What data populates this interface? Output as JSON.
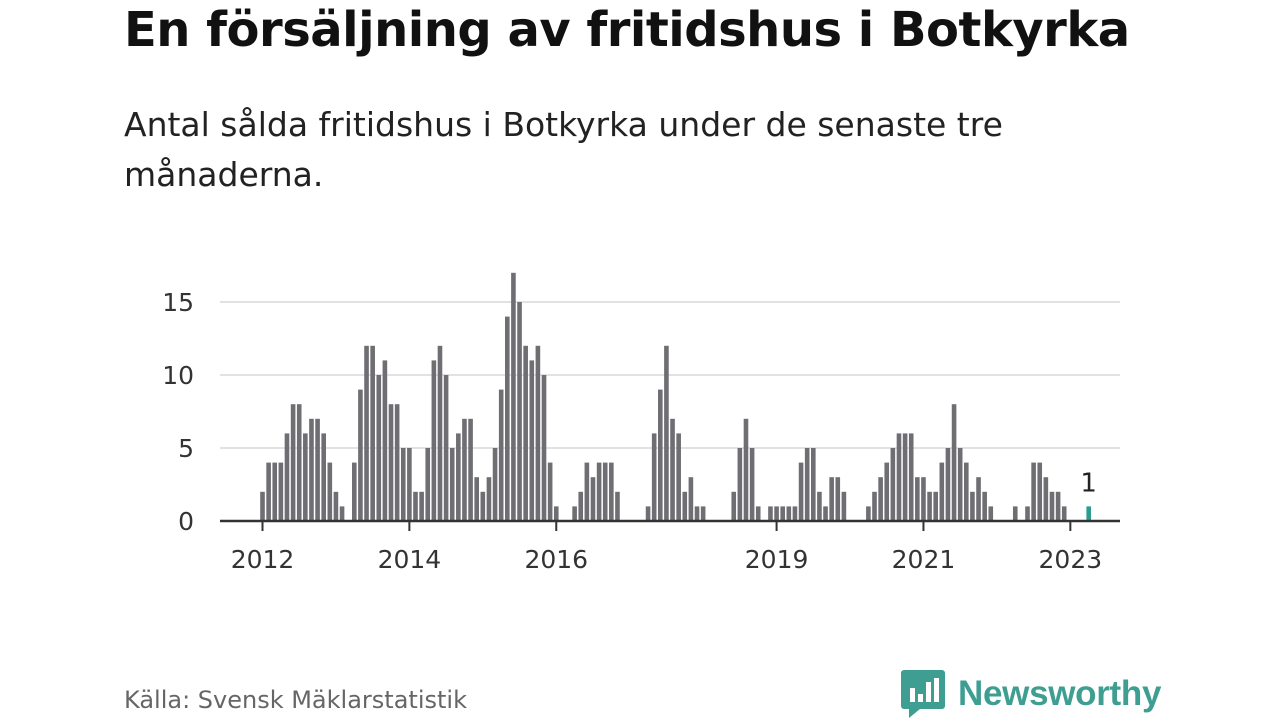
{
  "header": {
    "title": "En försäljning av fritidshus i Botkyrka",
    "subtitle": "Antal sålda fritidshus i Botkyrka under de senaste tre månaderna."
  },
  "footer": {
    "source": "Källa: Svensk Mäklarstatistik",
    "brand": "Newsworthy",
    "brand_icon": "bar-chart-speech-bubble-icon"
  },
  "colors": {
    "bar": "#6e6e73",
    "highlight": "#2a9d8f",
    "grid": "#d9d9d9",
    "axis": "#333333",
    "brand": "#3f9e92"
  },
  "chart_data": {
    "type": "bar",
    "title": "En försäljning av fritidshus i Botkyrka",
    "subtitle": "Antal sålda fritidshus i Botkyrka under de senaste tre månaderna.",
    "start_month": "2012-01",
    "values": [
      2,
      4,
      4,
      4,
      6,
      8,
      8,
      6,
      7,
      7,
      6,
      4,
      2,
      1,
      0,
      4,
      9,
      12,
      12,
      10,
      11,
      8,
      8,
      5,
      5,
      2,
      2,
      5,
      11,
      12,
      10,
      5,
      6,
      7,
      7,
      3,
      2,
      3,
      5,
      9,
      14,
      17,
      15,
      12,
      11,
      12,
      10,
      4,
      1,
      0,
      0,
      1,
      2,
      4,
      3,
      4,
      4,
      4,
      2,
      0,
      0,
      0,
      0,
      1,
      6,
      9,
      12,
      7,
      6,
      2,
      3,
      1,
      1,
      0,
      0,
      0,
      0,
      2,
      5,
      7,
      5,
      1,
      0,
      1,
      1,
      1,
      1,
      1,
      4,
      5,
      5,
      2,
      1,
      3,
      3,
      2,
      0,
      0,
      0,
      1,
      2,
      3,
      4,
      5,
      6,
      6,
      6,
      3,
      3,
      2,
      2,
      4,
      5,
      8,
      5,
      4,
      2,
      3,
      2,
      1,
      0,
      0,
      0,
      1,
      0,
      1,
      4,
      4,
      3,
      2,
      2,
      1,
      0,
      0,
      0,
      1
    ],
    "highlight_last": true,
    "last_value_label": "1",
    "x_ticks": [
      "2012",
      "2014",
      "2016",
      "2019",
      "2021",
      "2023"
    ],
    "y_ticks": [
      0,
      5,
      10,
      15
    ],
    "ylim": [
      0,
      17
    ],
    "xlabel": "",
    "ylabel": "",
    "grid": true,
    "legend": "none"
  }
}
